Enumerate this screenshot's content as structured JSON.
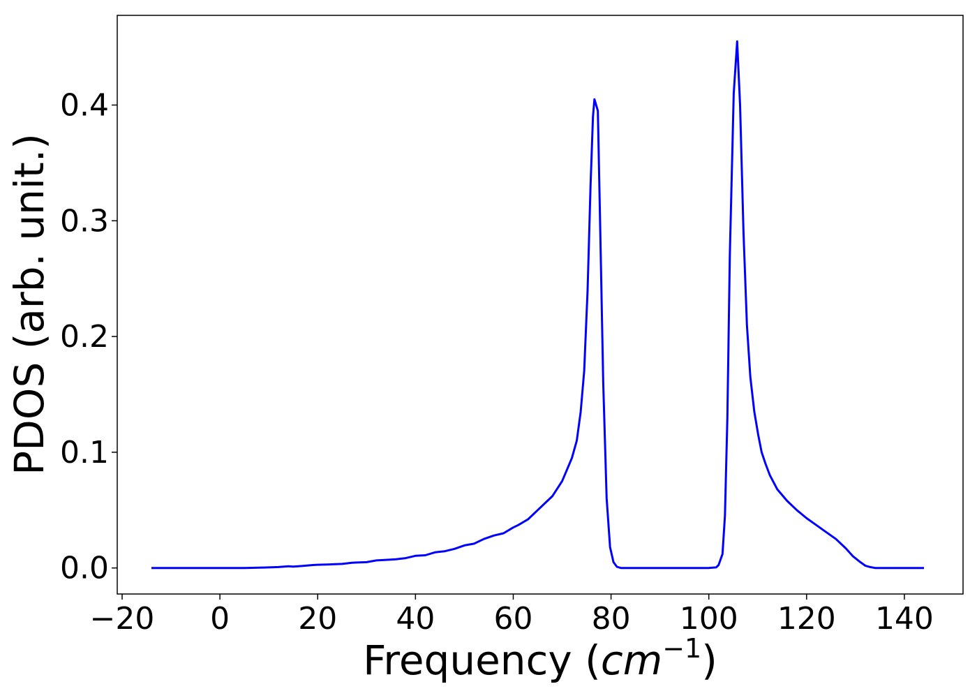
{
  "chart_data": {
    "type": "line",
    "title": "",
    "xlabel": "Frequency",
    "xlabel_unit_base": "cm",
    "xlabel_unit_exponent": "−1",
    "ylabel": "PDOS (arb. unit.)",
    "xlim": [
      -21,
      152
    ],
    "ylim": [
      -0.0225,
      0.4775
    ],
    "x_ticks": [
      -20,
      0,
      20,
      40,
      60,
      80,
      100,
      120,
      140
    ],
    "x_tick_labels": [
      "−20",
      "0",
      "20",
      "40",
      "60",
      "80",
      "100",
      "120",
      "140"
    ],
    "y_ticks": [
      0.0,
      0.1,
      0.2,
      0.3,
      0.4
    ],
    "y_tick_labels": [
      "0.0",
      "0.1",
      "0.2",
      "0.3",
      "0.4"
    ],
    "grid": false,
    "legend": "none",
    "series": [
      {
        "color": "#0000ff",
        "x": [
          -14,
          0,
          5,
          10,
          12,
          14,
          15,
          17,
          19,
          20,
          22,
          25,
          27,
          30,
          32,
          34,
          36,
          38,
          40,
          42,
          44,
          46,
          48,
          50,
          52,
          54,
          56,
          58,
          60,
          61,
          63,
          65,
          67,
          68,
          70,
          71,
          72,
          73,
          73.8,
          74.5,
          75.2,
          75.8,
          76.3,
          76.6,
          77.3,
          77.8,
          78.4,
          79.1,
          79.8,
          80.5,
          81.2,
          82,
          83,
          90,
          100,
          101.5,
          102,
          102.8,
          103.3,
          103.8,
          104.3,
          105.1,
          105.8,
          106.4,
          107.1,
          107.8,
          108.5,
          109.3,
          110.1,
          110.8,
          111.6,
          112.5,
          114,
          116,
          118,
          120,
          122,
          124,
          126,
          128,
          129.5,
          131,
          132,
          133,
          134,
          136,
          144
        ],
        "y": [
          0.0,
          0.0,
          0.0,
          0.0005,
          0.0008,
          0.0015,
          0.0012,
          0.0018,
          0.0025,
          0.0028,
          0.003,
          0.0035,
          0.0045,
          0.005,
          0.0065,
          0.007,
          0.0075,
          0.0085,
          0.0105,
          0.011,
          0.0135,
          0.0145,
          0.0165,
          0.0195,
          0.021,
          0.025,
          0.028,
          0.03,
          0.035,
          0.037,
          0.042,
          0.05,
          0.058,
          0.062,
          0.075,
          0.085,
          0.095,
          0.11,
          0.135,
          0.17,
          0.24,
          0.33,
          0.39,
          0.405,
          0.395,
          0.29,
          0.16,
          0.06,
          0.018,
          0.005,
          0.001,
          0.0,
          0.0,
          0.0,
          0.0,
          0.0005,
          0.0025,
          0.012,
          0.045,
          0.13,
          0.27,
          0.41,
          0.455,
          0.4,
          0.29,
          0.21,
          0.165,
          0.135,
          0.115,
          0.1,
          0.09,
          0.08,
          0.068,
          0.058,
          0.05,
          0.043,
          0.037,
          0.031,
          0.025,
          0.017,
          0.01,
          0.005,
          0.002,
          0.0008,
          0.0,
          0.0,
          0.0
        ]
      }
    ]
  }
}
